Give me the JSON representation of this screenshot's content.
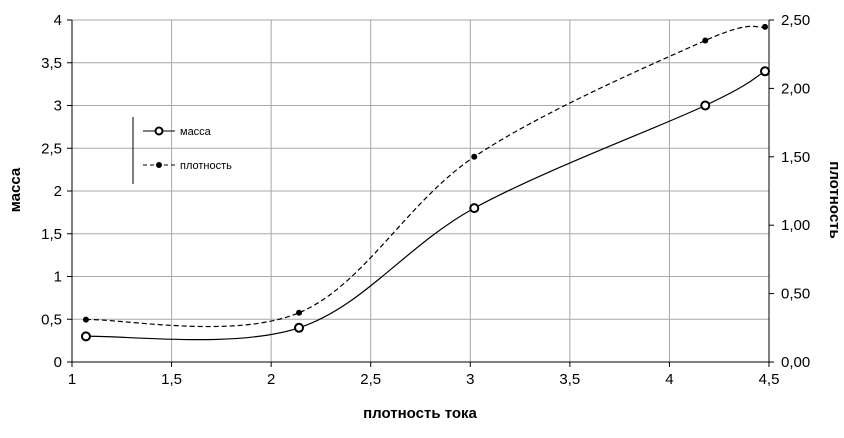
{
  "chart_data": {
    "type": "line",
    "title": "",
    "xlabel": "плотность тока",
    "ylabel": "масса",
    "y2label": "плотность",
    "xlim": [
      1,
      4.5
    ],
    "ylim": [
      0,
      4
    ],
    "y2lim": [
      0,
      2.5
    ],
    "x_ticks": [
      "1",
      "1,5",
      "2",
      "2,5",
      "3",
      "3,5",
      "4",
      "4,5"
    ],
    "x_tick_values": [
      1,
      1.5,
      2,
      2.5,
      3,
      3.5,
      4,
      4.5
    ],
    "y_ticks": [
      "0",
      "0,5",
      "1",
      "1,5",
      "2",
      "2,5",
      "3",
      "3,5",
      "4"
    ],
    "y_tick_values": [
      0,
      0.5,
      1,
      1.5,
      2,
      2.5,
      3,
      3.5,
      4
    ],
    "y2_ticks": [
      "0,00",
      "0,50",
      "1,00",
      "1,50",
      "2,00",
      "2,50"
    ],
    "y2_tick_values": [
      0,
      0.5,
      1,
      1.5,
      2,
      2.5
    ],
    "grid": true,
    "legend_position": "top-left",
    "series": [
      {
        "name": "масса",
        "axis": "left",
        "style": "solid",
        "marker": "open-circle",
        "x": [
          1.07,
          2.14,
          3.02,
          4.18,
          4.48
        ],
        "y": [
          0.3,
          0.4,
          1.8,
          3.0,
          3.4
        ]
      },
      {
        "name": "плотность",
        "axis": "right",
        "style": "dashed",
        "marker": "filled-dot",
        "x": [
          1.07,
          2.14,
          3.02,
          4.18,
          4.48
        ],
        "y": [
          0.31,
          0.36,
          1.5,
          2.35,
          2.45
        ]
      }
    ]
  }
}
